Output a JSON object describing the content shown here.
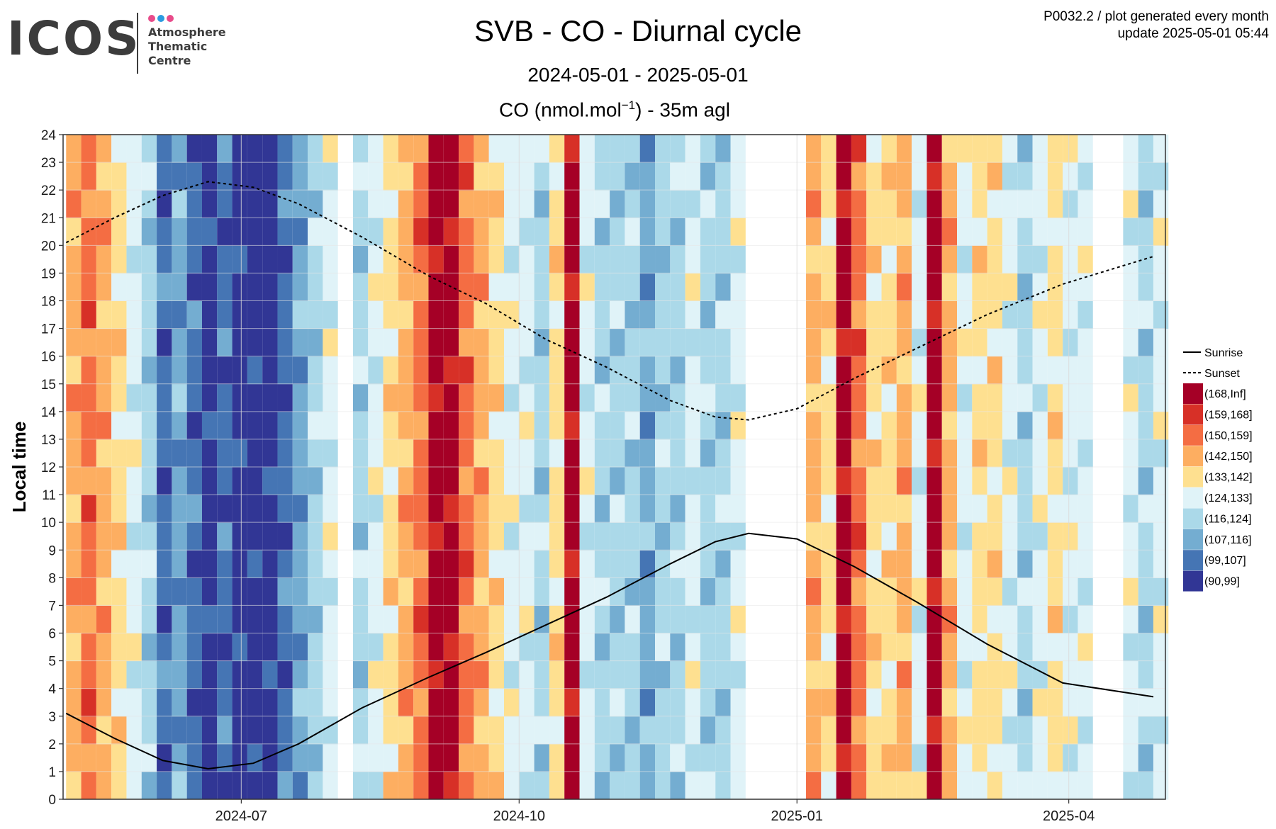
{
  "logo": {
    "word": "ICOS",
    "line1": "Atmosphere",
    "line2": "Thematic",
    "line3": "Centre",
    "dot_colors": [
      "#e84b8a",
      "#2b9be0",
      "#e84b8a"
    ]
  },
  "header": {
    "title": "SVB - CO - Diurnal cycle",
    "subtitle": "2024-05-01 - 2025-05-01",
    "species_prefix": "CO (nmol.mol",
    "species_sup": "−1",
    "species_suffix": ") - 35m agl",
    "meta_line1": "P0032.2 / plot generated every month",
    "meta_line2": "update  2025-05-01 05:44"
  },
  "chart_data": {
    "type": "heatmap",
    "ylabel": "Local time",
    "y_ticks": [
      "0",
      "1",
      "2",
      "3",
      "4",
      "5",
      "6",
      "7",
      "8",
      "9",
      "10",
      "11",
      "12",
      "13",
      "14",
      "15",
      "16",
      "17",
      "18",
      "19",
      "20",
      "21",
      "22",
      "23",
      "24"
    ],
    "ylim": [
      0,
      24
    ],
    "xlim": [
      "2024-05-03",
      "2025-05-03"
    ],
    "x_ticks": [
      {
        "date": "2024-07-01",
        "label": "2024-07"
      },
      {
        "date": "2024-10-01",
        "label": "2024-10"
      },
      {
        "date": "2025-01-01",
        "label": "2025-01"
      },
      {
        "date": "2025-04-01",
        "label": "2025-04"
      }
    ],
    "grid": true,
    "legend_position": "right",
    "legend_lines": [
      {
        "name": "Sunrise",
        "style": "solid"
      },
      {
        "name": "Sunset",
        "style": "dotted"
      }
    ],
    "color_bins": [
      {
        "label": "(168,Inf]",
        "color": "#a50026"
      },
      {
        "label": "(159,168]",
        "color": "#d73027"
      },
      {
        "label": "(150,159]",
        "color": "#f46d43"
      },
      {
        "label": "(142,150]",
        "color": "#fdae61"
      },
      {
        "label": "(133,142]",
        "color": "#fee090"
      },
      {
        "label": "(124,133]",
        "color": "#e0f3f8"
      },
      {
        "label": "(116,124]",
        "color": "#abd9e9"
      },
      {
        "label": "(107,116]",
        "color": "#74add1"
      },
      {
        "label": "(99,107]",
        "color": "#4575b4"
      },
      {
        "label": "(90,99]",
        "color": "#313695"
      }
    ],
    "sunrise": [
      {
        "date": "2024-05-04",
        "hour": 3.1
      },
      {
        "date": "2024-05-20",
        "hour": 2.2
      },
      {
        "date": "2024-06-05",
        "hour": 1.4
      },
      {
        "date": "2024-06-20",
        "hour": 1.1
      },
      {
        "date": "2024-07-05",
        "hour": 1.3
      },
      {
        "date": "2024-07-20",
        "hour": 2.0
      },
      {
        "date": "2024-08-10",
        "hour": 3.3
      },
      {
        "date": "2024-09-01",
        "hour": 4.4
      },
      {
        "date": "2024-09-20",
        "hour": 5.3
      },
      {
        "date": "2024-10-10",
        "hour": 6.3
      },
      {
        "date": "2024-10-30",
        "hour": 7.3
      },
      {
        "date": "2024-11-20",
        "hour": 8.5
      },
      {
        "date": "2024-12-05",
        "hour": 9.3
      },
      {
        "date": "2024-12-16",
        "hour": 9.6
      },
      {
        "date": "2025-01-01",
        "hour": 9.4
      },
      {
        "date": "2025-01-20",
        "hour": 8.4
      },
      {
        "date": "2025-02-10",
        "hour": 7.1
      },
      {
        "date": "2025-03-05",
        "hour": 5.6
      },
      {
        "date": "2025-03-30",
        "hour": 4.2
      },
      {
        "date": "2025-04-29",
        "hour": 3.7
      }
    ],
    "sunset": [
      {
        "date": "2024-05-04",
        "hour": 20.1
      },
      {
        "date": "2024-05-20",
        "hour": 21.0
      },
      {
        "date": "2024-06-05",
        "hour": 21.8
      },
      {
        "date": "2024-06-20",
        "hour": 22.3
      },
      {
        "date": "2024-07-05",
        "hour": 22.1
      },
      {
        "date": "2024-07-20",
        "hour": 21.5
      },
      {
        "date": "2024-08-10",
        "hour": 20.3
      },
      {
        "date": "2024-09-01",
        "hour": 18.9
      },
      {
        "date": "2024-09-20",
        "hour": 17.9
      },
      {
        "date": "2024-10-10",
        "hour": 16.6
      },
      {
        "date": "2024-10-30",
        "hour": 15.6
      },
      {
        "date": "2024-11-20",
        "hour": 14.4
      },
      {
        "date": "2024-12-05",
        "hour": 13.8
      },
      {
        "date": "2024-12-16",
        "hour": 13.7
      },
      {
        "date": "2025-01-01",
        "hour": 14.1
      },
      {
        "date": "2025-01-20",
        "hour": 15.2
      },
      {
        "date": "2025-02-10",
        "hour": 16.3
      },
      {
        "date": "2025-03-05",
        "hour": 17.5
      },
      {
        "date": "2025-03-30",
        "hour": 18.6
      },
      {
        "date": "2025-04-29",
        "hour": 19.6
      }
    ],
    "observations": {
      "dates": [
        "2024-05-04",
        "2024-05-09",
        "2024-05-14",
        "2024-05-19",
        "2024-05-24",
        "2024-05-29",
        "2024-06-03",
        "2024-06-08",
        "2024-06-13",
        "2024-06-18",
        "2024-06-23",
        "2024-06-28",
        "2024-07-03",
        "2024-07-08",
        "2024-07-13",
        "2024-07-18",
        "2024-07-23",
        "2024-07-28",
        "2024-08-02",
        "2024-08-07",
        "2024-08-12",
        "2024-08-17",
        "2024-08-22",
        "2024-08-27",
        "2024-09-01",
        "2024-09-06",
        "2024-09-11",
        "2024-09-16",
        "2024-09-21",
        "2024-09-26",
        "2024-10-01",
        "2024-10-06",
        "2024-10-11",
        "2024-10-16",
        "2024-10-21",
        "2024-10-26",
        "2024-10-31",
        "2024-11-05",
        "2024-11-10",
        "2024-11-15",
        "2024-11-20",
        "2024-11-25",
        "2024-11-30",
        "2024-12-05",
        "2024-12-10",
        "2024-12-15",
        "2024-12-20",
        "2024-12-25",
        "2024-12-30",
        "2025-01-04",
        "2025-01-09",
        "2025-01-14",
        "2025-01-19",
        "2025-01-24",
        "2025-01-29",
        "2025-02-03",
        "2025-02-08",
        "2025-02-13",
        "2025-02-18",
        "2025-02-23",
        "2025-02-28",
        "2025-03-05",
        "2025-03-10",
        "2025-03-15",
        "2025-03-20",
        "2025-03-25",
        "2025-03-30",
        "2025-04-04",
        "2025-04-09",
        "2025-04-14",
        "2025-04-19",
        "2025-04-24",
        "2025-04-29"
      ],
      "bin_index": [
        3,
        2,
        3,
        4,
        5,
        6,
        8,
        7,
        8,
        9,
        8,
        9,
        9,
        9,
        8,
        7,
        6,
        5,
        null,
        6,
        5,
        4,
        3,
        2,
        0,
        0,
        2,
        3,
        4,
        5,
        5,
        6,
        4,
        0,
        5,
        6,
        6,
        6,
        7,
        6,
        6,
        5,
        6,
        6,
        5,
        null,
        null,
        null,
        null,
        3,
        4,
        0,
        2,
        4,
        4,
        3,
        5,
        0,
        3,
        5,
        4,
        4,
        5,
        6,
        5,
        4,
        5,
        5,
        null,
        null,
        5,
        6,
        5
      ]
    }
  }
}
